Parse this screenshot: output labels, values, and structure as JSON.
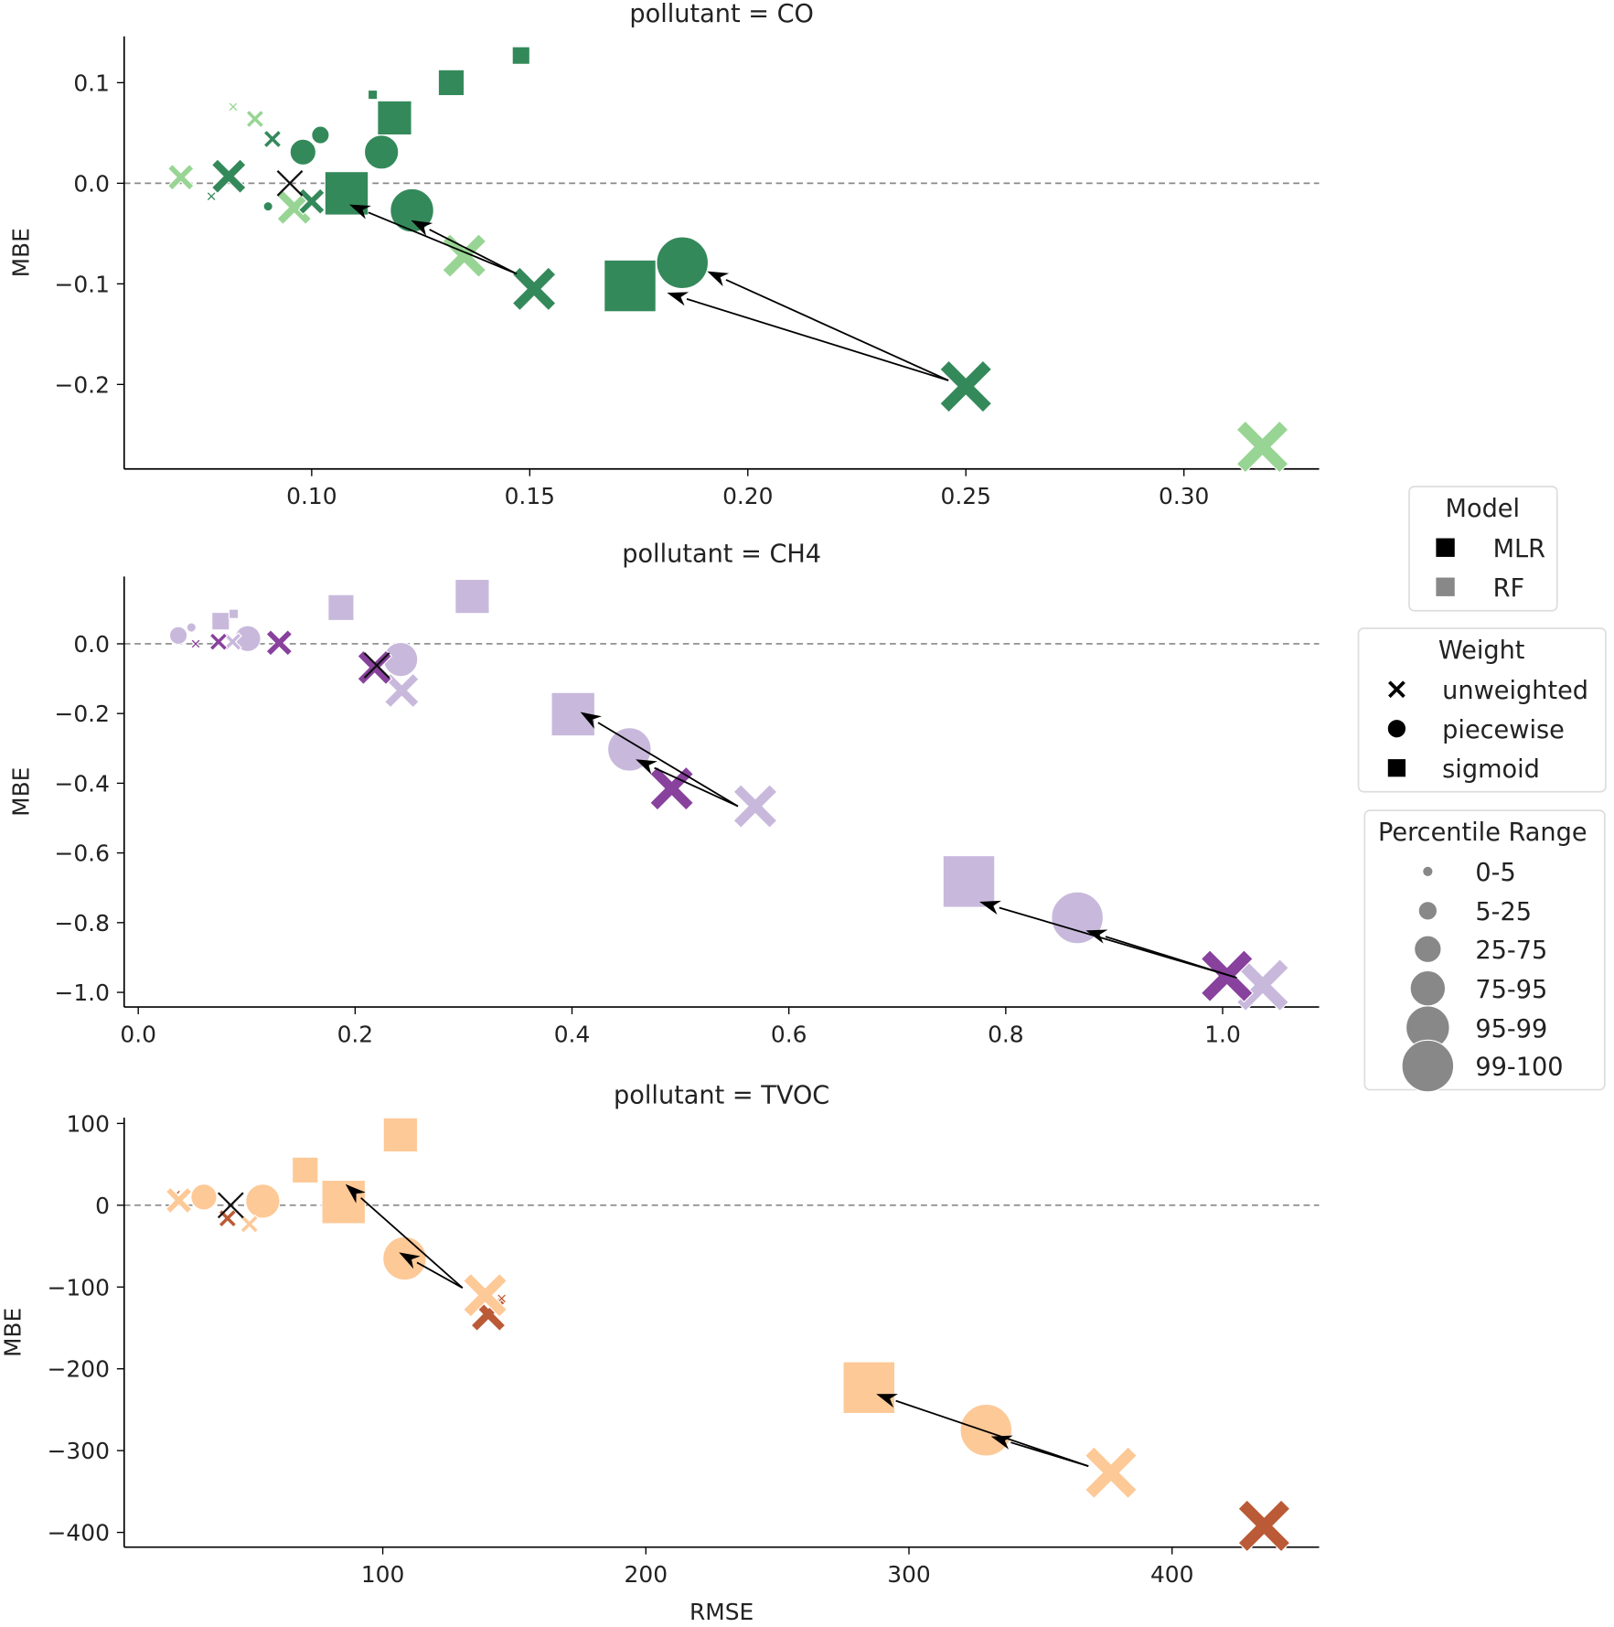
{
  "chart_data": {
    "type": "scatter",
    "xlabel": "RMSE",
    "ylabel": "MBE",
    "colors": {
      "CO": {
        "MLR": "#34895a",
        "RF": "#98d594"
      },
      "CH4": {
        "MLR": "#88419d",
        "RF": "#c8b9dc"
      },
      "TVOC": {
        "MLR": "#bb5a36",
        "RF": "#fdc997"
      }
    },
    "legend": {
      "placement": "right",
      "model": {
        "title": "Model",
        "items": [
          {
            "label": "MLR",
            "color": "#000000"
          },
          {
            "label": "RF",
            "color": "#888888"
          }
        ]
      },
      "weight": {
        "title": "Weight",
        "items": [
          {
            "label": "unweighted",
            "marker": "x"
          },
          {
            "label": "piecewise",
            "marker": "circle"
          },
          {
            "label": "sigmoid",
            "marker": "square"
          }
        ]
      },
      "percentile": {
        "title": "Percentile Range",
        "items": [
          "0-5",
          "5-25",
          "25-75",
          "75-95",
          "95-99",
          "99-100"
        ]
      }
    },
    "panels": [
      {
        "pollutant": "CO",
        "title": "pollutant = CO",
        "xlim": [
          0.057,
          0.331
        ],
        "ylim": [
          -0.284,
          0.146
        ],
        "xticks": [
          {
            "v": 0.1,
            "label": "0.10"
          },
          {
            "v": 0.15,
            "label": "0.15"
          },
          {
            "v": 0.2,
            "label": "0.20"
          },
          {
            "v": 0.25,
            "label": "0.25"
          },
          {
            "v": 0.3,
            "label": "0.30"
          }
        ],
        "yticks": [
          {
            "v": 0.1,
            "label": "0.1"
          },
          {
            "v": 0.0,
            "label": "0.0"
          },
          {
            "v": -0.1,
            "label": "−0.1"
          },
          {
            "v": -0.2,
            "label": "−0.2"
          }
        ],
        "show_xlabel": false,
        "points": [
          {
            "model": "MLR",
            "weight": "sigmoid",
            "pct": "0-5",
            "x": 0.114,
            "y": 0.088
          },
          {
            "model": "MLR",
            "weight": "sigmoid",
            "pct": "5-25",
            "x": 0.148,
            "y": 0.127
          },
          {
            "model": "MLR",
            "weight": "sigmoid",
            "pct": "25-75",
            "x": 0.132,
            "y": 0.1
          },
          {
            "model": "MLR",
            "weight": "sigmoid",
            "pct": "75-95",
            "x": 0.119,
            "y": 0.065
          },
          {
            "model": "MLR",
            "weight": "sigmoid",
            "pct": "95-99",
            "x": 0.108,
            "y": -0.01
          },
          {
            "model": "MLR",
            "weight": "sigmoid",
            "pct": "99-100",
            "x": 0.173,
            "y": -0.102
          },
          {
            "model": "MLR",
            "weight": "piecewise",
            "pct": "0-5",
            "x": 0.09,
            "y": -0.023
          },
          {
            "model": "MLR",
            "weight": "piecewise",
            "pct": "5-25",
            "x": 0.102,
            "y": 0.048
          },
          {
            "model": "MLR",
            "weight": "piecewise",
            "pct": "25-75",
            "x": 0.098,
            "y": 0.031
          },
          {
            "model": "MLR",
            "weight": "piecewise",
            "pct": "75-95",
            "x": 0.116,
            "y": 0.031
          },
          {
            "model": "MLR",
            "weight": "piecewise",
            "pct": "95-99",
            "x": 0.123,
            "y": -0.027
          },
          {
            "model": "MLR",
            "weight": "piecewise",
            "pct": "99-100",
            "x": 0.185,
            "y": -0.079
          },
          {
            "model": "RF",
            "weight": "unweighted",
            "pct": "0-5",
            "x": 0.082,
            "y": 0.076
          },
          {
            "model": "RF",
            "weight": "unweighted",
            "pct": "5-25",
            "x": 0.087,
            "y": 0.064
          },
          {
            "model": "RF",
            "weight": "unweighted",
            "pct": "25-75",
            "x": 0.07,
            "y": 0.006
          },
          {
            "model": "RF",
            "weight": "unweighted",
            "pct": "75-95",
            "x": 0.096,
            "y": -0.024
          },
          {
            "model": "RF",
            "weight": "unweighted",
            "pct": "95-99",
            "x": 0.135,
            "y": -0.072
          },
          {
            "model": "RF",
            "weight": "unweighted",
            "pct": "99-100",
            "x": 0.318,
            "y": -0.262
          },
          {
            "model": "MLR",
            "weight": "unweighted",
            "pct": "0-5",
            "x": 0.077,
            "y": -0.013
          },
          {
            "model": "MLR",
            "weight": "unweighted",
            "pct": "5-25",
            "x": 0.091,
            "y": 0.044
          },
          {
            "model": "MLR",
            "weight": "unweighted",
            "pct": "75-95",
            "x": 0.081,
            "y": 0.007
          },
          {
            "model": "MLR",
            "weight": "unweighted",
            "pct": "25-75",
            "x": 0.1,
            "y": -0.018
          },
          {
            "model": "MLR",
            "weight": "unweighted",
            "pct": "95-99",
            "x": 0.151,
            "y": -0.105
          },
          {
            "model": "MLR",
            "weight": "unweighted",
            "pct": "99-100",
            "x": 0.25,
            "y": -0.202
          }
        ],
        "reference": {
          "x": 0.095,
          "y": 0.0
        },
        "arrows": [
          {
            "from": [
              0.147,
              -0.09
            ],
            "to": [
              0.113,
              -0.029
            ]
          },
          {
            "from": [
              0.147,
              -0.09
            ],
            "to": [
              0.127,
              -0.046
            ]
          },
          {
            "from": [
              0.246,
              -0.196
            ],
            "to": [
              0.195,
              -0.096
            ]
          },
          {
            "from": [
              0.246,
              -0.196
            ],
            "to": [
              0.186,
              -0.115
            ]
          }
        ]
      },
      {
        "pollutant": "CH4",
        "title": "pollutant = CH4",
        "xlim": [
          -0.013,
          1.089
        ],
        "ylim": [
          -1.042,
          0.193
        ],
        "xticks": [
          {
            "v": 0.0,
            "label": "0.0"
          },
          {
            "v": 0.2,
            "label": "0.2"
          },
          {
            "v": 0.4,
            "label": "0.4"
          },
          {
            "v": 0.6,
            "label": "0.6"
          },
          {
            "v": 0.8,
            "label": "0.8"
          },
          {
            "v": 1.0,
            "label": "1.0"
          }
        ],
        "yticks": [
          {
            "v": 0.0,
            "label": "0.0"
          },
          {
            "v": -0.2,
            "label": "−0.2"
          },
          {
            "v": -0.4,
            "label": "−0.4"
          },
          {
            "v": -0.6,
            "label": "−0.6"
          },
          {
            "v": -0.8,
            "label": "−0.8"
          },
          {
            "v": -1.0,
            "label": "−1.0"
          }
        ],
        "show_xlabel": false,
        "points": [
          {
            "model": "RF",
            "weight": "sigmoid",
            "pct": "5-25",
            "x": 0.076,
            "y": 0.065
          },
          {
            "model": "RF",
            "weight": "sigmoid",
            "pct": "0-5",
            "x": 0.088,
            "y": 0.086
          },
          {
            "model": "RF",
            "weight": "sigmoid",
            "pct": "25-75",
            "x": 0.187,
            "y": 0.104
          },
          {
            "model": "RF",
            "weight": "sigmoid",
            "pct": "75-95",
            "x": 0.308,
            "y": 0.136
          },
          {
            "model": "RF",
            "weight": "sigmoid",
            "pct": "95-99",
            "x": 0.401,
            "y": -0.202
          },
          {
            "model": "RF",
            "weight": "sigmoid",
            "pct": "99-100",
            "x": 0.766,
            "y": -0.682
          },
          {
            "model": "RF",
            "weight": "piecewise",
            "pct": "5-25",
            "x": 0.037,
            "y": 0.024
          },
          {
            "model": "RF",
            "weight": "piecewise",
            "pct": "0-5",
            "x": 0.049,
            "y": 0.047
          },
          {
            "model": "RF",
            "weight": "piecewise",
            "pct": "25-75",
            "x": 0.101,
            "y": 0.015
          },
          {
            "model": "RF",
            "weight": "piecewise",
            "pct": "75-95",
            "x": 0.242,
            "y": -0.045
          },
          {
            "model": "RF",
            "weight": "piecewise",
            "pct": "95-99",
            "x": 0.453,
            "y": -0.303
          },
          {
            "model": "RF",
            "weight": "piecewise",
            "pct": "99-100",
            "x": 0.866,
            "y": -0.786
          },
          {
            "model": "RF",
            "weight": "unweighted",
            "pct": "5-25",
            "x": 0.087,
            "y": 0.006
          },
          {
            "model": "RF",
            "weight": "unweighted",
            "pct": "75-95",
            "x": 0.243,
            "y": -0.134
          },
          {
            "model": "RF",
            "weight": "unweighted",
            "pct": "95-99",
            "x": 0.569,
            "y": -0.466
          },
          {
            "model": "RF",
            "weight": "unweighted",
            "pct": "99-100",
            "x": 1.037,
            "y": -0.979
          },
          {
            "model": "MLR",
            "weight": "unweighted",
            "pct": "0-5",
            "x": 0.053,
            "y": 0.0
          },
          {
            "model": "MLR",
            "weight": "unweighted",
            "pct": "5-25",
            "x": 0.074,
            "y": 0.006
          },
          {
            "model": "MLR",
            "weight": "unweighted",
            "pct": "25-75",
            "x": 0.13,
            "y": 0.003
          },
          {
            "model": "MLR",
            "weight": "unweighted",
            "pct": "75-95",
            "x": 0.218,
            "y": -0.068
          },
          {
            "model": "MLR",
            "weight": "unweighted",
            "pct": "95-99",
            "x": 0.492,
            "y": -0.415
          },
          {
            "model": "MLR",
            "weight": "unweighted",
            "pct": "99-100",
            "x": 1.004,
            "y": -0.953
          }
        ],
        "reference": {
          "x": 0.22,
          "y": -0.062
        },
        "arrows": [
          {
            "from": [
              0.553,
              -0.466
            ],
            "to": [
              0.424,
              -0.226
            ]
          },
          {
            "from": [
              0.553,
              -0.466
            ],
            "to": [
              0.476,
              -0.356
            ]
          },
          {
            "from": [
              1.013,
              -0.958
            ],
            "to": [
              0.794,
              -0.757
            ]
          },
          {
            "from": [
              1.013,
              -0.958
            ],
            "to": [
              0.892,
              -0.84
            ]
          }
        ]
      },
      {
        "pollutant": "TVOC",
        "title": "pollutant = TVOC",
        "xlim": [
          1.7,
          455.9
        ],
        "ylim": [
          -418,
          107
        ],
        "xticks": [
          {
            "v": 100,
            "label": "100"
          },
          {
            "v": 200,
            "label": "200"
          },
          {
            "v": 300,
            "label": "300"
          },
          {
            "v": 400,
            "label": "400"
          }
        ],
        "yticks": [
          {
            "v": 100,
            "label": "100"
          },
          {
            "v": 0,
            "label": "0"
          },
          {
            "v": -100,
            "label": "−100"
          },
          {
            "v": -200,
            "label": "−200"
          },
          {
            "v": -300,
            "label": "−300"
          },
          {
            "v": -400,
            "label": "−400"
          }
        ],
        "show_xlabel": true,
        "points": [
          {
            "model": "RF",
            "weight": "sigmoid",
            "pct": "25-75",
            "x": 70.5,
            "y": 43
          },
          {
            "model": "RF",
            "weight": "sigmoid",
            "pct": "75-95",
            "x": 106.7,
            "y": 86
          },
          {
            "model": "RF",
            "weight": "sigmoid",
            "pct": "95-99",
            "x": 85.1,
            "y": 4
          },
          {
            "model": "RF",
            "weight": "sigmoid",
            "pct": "99-100",
            "x": 284.8,
            "y": -223
          },
          {
            "model": "RF",
            "weight": "piecewise",
            "pct": "25-75",
            "x": 32.0,
            "y": 10
          },
          {
            "model": "RF",
            "weight": "piecewise",
            "pct": "75-95",
            "x": 54.4,
            "y": 5
          },
          {
            "model": "RF",
            "weight": "piecewise",
            "pct": "95-99",
            "x": 108.3,
            "y": -65
          },
          {
            "model": "RF",
            "weight": "piecewise",
            "pct": "99-100",
            "x": 329.3,
            "y": -275
          },
          {
            "model": "MLR",
            "weight": "unweighted",
            "pct": "0-5",
            "x": 21.4,
            "y": 13
          },
          {
            "model": "MLR",
            "weight": "unweighted",
            "pct": "5-25",
            "x": 41.0,
            "y": -16
          },
          {
            "model": "MLR",
            "weight": "unweighted",
            "pct": "75-95",
            "x": 140.1,
            "y": -133
          },
          {
            "model": "MLR",
            "weight": "unweighted",
            "pct": "0-5",
            "x": 145.2,
            "y": -114
          },
          {
            "model": "MLR",
            "weight": "unweighted",
            "pct": "99-100",
            "x": 435.0,
            "y": -392
          },
          {
            "model": "RF",
            "weight": "unweighted",
            "pct": "25-75",
            "x": 22.5,
            "y": 6
          },
          {
            "model": "RF",
            "weight": "unweighted",
            "pct": "5-25",
            "x": 49.3,
            "y": -23
          },
          {
            "model": "RF",
            "weight": "unweighted",
            "pct": "95-99",
            "x": 138.9,
            "y": -110
          },
          {
            "model": "RF",
            "weight": "unweighted",
            "pct": "99-100",
            "x": 376.8,
            "y": -327
          }
        ],
        "reference": {
          "x": 42.2,
          "y": 0
        },
        "arrows": [
          {
            "from": [
              130.3,
              -101
            ],
            "to": [
              91.7,
              9
            ]
          },
          {
            "from": [
              130.3,
              -101
            ],
            "to": [
              113.0,
              -70
            ]
          },
          {
            "from": [
              368.2,
              -319
            ],
            "to": [
              295.0,
              -239
            ]
          },
          {
            "from": [
              368.2,
              -319
            ],
            "to": [
              338.7,
              -290
            ]
          }
        ]
      }
    ]
  }
}
